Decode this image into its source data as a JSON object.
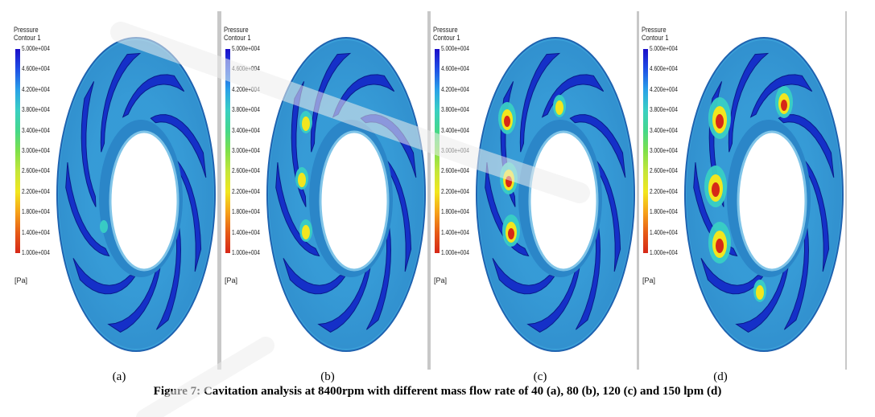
{
  "colors": {
    "scale": [
      "#1b0ec8",
      "#1f4fe6",
      "#2aa2e8",
      "#39cfc4",
      "#45d88a",
      "#7ee04a",
      "#c4e63a",
      "#f2e61e",
      "#f6a21a",
      "#e65a17",
      "#d62818"
    ],
    "hub": "#3aa5dc",
    "background": "#ffffff"
  },
  "legend": {
    "title_line1": "Pressure",
    "title_line2": "Contour 1",
    "ticks": [
      "5.000e+004",
      "4.600e+004",
      "4.200e+004",
      "3.800e+004",
      "3.400e+004",
      "3.000e+004",
      "2.600e+004",
      "2.200e+004",
      "1.800e+004",
      "1.400e+004",
      "1.000e+004"
    ],
    "unit": "[Pa]"
  },
  "panels": [
    {
      "label": "(a)",
      "mass_flow": 40
    },
    {
      "label": "(b)",
      "mass_flow": 80
    },
    {
      "label": "(c)",
      "mass_flow": 120
    },
    {
      "label": "(d)",
      "mass_flow": 150
    }
  ],
  "caption": "Figure 7: Cavitation analysis at 8400rpm with different mass flow rate of 40 (a), 80 (b), 120 (c) and 150 lpm (d)"
}
